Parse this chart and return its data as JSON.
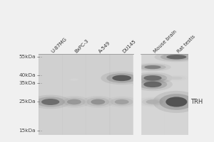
{
  "fig_bg": "#f0f0f0",
  "gel_bg_light": "#d0d0d0",
  "gel_bg_panel2": "#d8d8d8",
  "lanes": [
    "U-87MG",
    "BxPC-3",
    "A-549",
    "DU145",
    "Mouse brain",
    "Rat testis"
  ],
  "mw_labels": [
    "55kDa",
    "40kDa",
    "35kDa",
    "25kDa",
    "15kDa"
  ],
  "mw_kda": [
    55,
    40,
    35,
    25,
    15
  ],
  "mw_log_range": [
    14,
    58
  ],
  "band_label": "TRH",
  "bands": [
    {
      "lane": 0,
      "mw": 25,
      "intensity": 0.78,
      "xwidth": 0.38,
      "ywidth": 1.4
    },
    {
      "lane": 1,
      "mw": 25,
      "intensity": 0.55,
      "xwidth": 0.3,
      "ywidth": 1.2
    },
    {
      "lane": 1,
      "mw": 37,
      "intensity": 0.22,
      "xwidth": 0.15,
      "ywidth": 0.7
    },
    {
      "lane": 2,
      "mw": 25,
      "intensity": 0.58,
      "xwidth": 0.3,
      "ywidth": 1.2
    },
    {
      "lane": 3,
      "mw": 38,
      "intensity": 0.88,
      "xwidth": 0.4,
      "ywidth": 2.0
    },
    {
      "lane": 3,
      "mw": 25,
      "intensity": 0.5,
      "xwidth": 0.3,
      "ywidth": 1.1
    },
    {
      "lane": 4,
      "mw": 46,
      "intensity": 0.68,
      "xwidth": 0.35,
      "ywidth": 1.5
    },
    {
      "lane": 4,
      "mw": 38,
      "intensity": 0.78,
      "xwidth": 0.38,
      "ywidth": 1.8
    },
    {
      "lane": 4,
      "mw": 34,
      "intensity": 0.82,
      "xwidth": 0.38,
      "ywidth": 1.8
    },
    {
      "lane": 4,
      "mw": 25,
      "intensity": 0.42,
      "xwidth": 0.28,
      "ywidth": 1.0
    },
    {
      "lane": 5,
      "mw": 55,
      "intensity": 0.82,
      "xwidth": 0.42,
      "ywidth": 2.2
    },
    {
      "lane": 5,
      "mw": 38,
      "intensity": 0.28,
      "xwidth": 0.25,
      "ywidth": 0.9
    },
    {
      "lane": 5,
      "mw": 25,
      "intensity": 0.92,
      "xwidth": 0.45,
      "ywidth": 2.2
    }
  ],
  "separator_after_lane": 3,
  "label_fontsize": 5.0,
  "mw_fontsize": 5.2,
  "trh_fontsize": 6.0,
  "trh_mw": 25,
  "panel1_lanes": [
    0,
    1,
    2,
    3
  ],
  "panel2_lanes": [
    4,
    5
  ]
}
